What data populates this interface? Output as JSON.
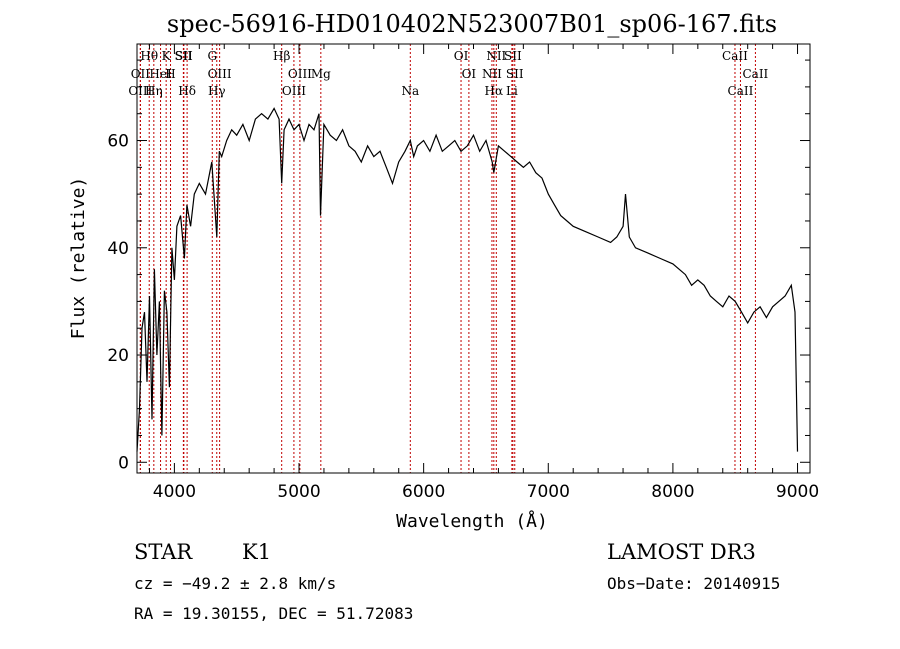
{
  "chart_data": {
    "type": "line",
    "title": "spec-56916-HD010402N523007B01_sp06-167.fits",
    "xlabel": "Wavelength (Å)",
    "ylabel": "Flux (relative)",
    "xlim": [
      3700,
      9100
    ],
    "ylim": [
      -2,
      78
    ],
    "xticks": [
      4000,
      5000,
      6000,
      7000,
      8000,
      9000
    ],
    "yticks": [
      0,
      20,
      40,
      60
    ],
    "grid": false,
    "series": [
      {
        "x": [
          3700,
          3720,
          3740,
          3760,
          3780,
          3800,
          3820,
          3840,
          3860,
          3880,
          3900,
          3920,
          3940,
          3960,
          3980,
          4000,
          4020,
          4050,
          4080,
          4100,
          4130,
          4160,
          4200,
          4250,
          4300,
          4340,
          4360,
          4380,
          4420,
          4460,
          4500,
          4550,
          4600,
          4650,
          4700,
          4750,
          4800,
          4840,
          4861,
          4880,
          4920,
          4960,
          5000,
          5040,
          5080,
          5120,
          5160,
          5172,
          5200,
          5250,
          5300,
          5350,
          5400,
          5450,
          5500,
          5550,
          5600,
          5650,
          5700,
          5750,
          5800,
          5850,
          5893,
          5920,
          5950,
          6000,
          6050,
          6100,
          6150,
          6200,
          6250,
          6300,
          6350,
          6400,
          6450,
          6500,
          6550,
          6563,
          6600,
          6650,
          6700,
          6750,
          6800,
          6850,
          6900,
          6950,
          7000,
          7050,
          7100,
          7150,
          7200,
          7300,
          7400,
          7500,
          7550,
          7600,
          7620,
          7650,
          7700,
          7800,
          7900,
          8000,
          8100,
          8150,
          8200,
          8250,
          8300,
          8350,
          8400,
          8450,
          8500,
          8550,
          8600,
          8650,
          8700,
          8750,
          8800,
          8850,
          8900,
          8950,
          8980,
          9000
        ],
        "y": [
          2,
          10,
          25,
          28,
          15,
          31,
          8,
          36,
          20,
          30,
          5,
          32,
          28,
          14,
          40,
          34,
          44,
          46,
          38,
          48,
          44,
          50,
          52,
          50,
          56,
          42,
          58,
          57,
          60,
          62,
          61,
          63,
          60,
          64,
          65,
          64,
          66,
          64,
          52,
          62,
          64,
          62,
          63,
          60,
          63,
          62,
          65,
          46,
          63,
          61,
          60,
          62,
          59,
          58,
          56,
          59,
          57,
          58,
          55,
          52,
          56,
          58,
          60,
          57,
          59,
          60,
          58,
          61,
          58,
          59,
          60,
          58,
          59,
          61,
          58,
          60,
          56,
          54,
          59,
          58,
          57,
          56,
          55,
          56,
          54,
          53,
          50,
          48,
          46,
          45,
          44,
          43,
          42,
          41,
          42,
          44,
          50,
          42,
          40,
          39,
          38,
          37,
          35,
          33,
          34,
          33,
          31,
          30,
          29,
          31,
          30,
          28,
          26,
          28,
          29,
          27,
          29,
          30,
          31,
          33,
          28,
          2
        ]
      }
    ],
    "spectral_lines": [
      {
        "name": "Hθ",
        "x": 3798
      },
      {
        "name": "OII",
        "x": 3727
      },
      {
        "name": "OIII",
        "x": 3727
      },
      {
        "name": "K",
        "x": 3934
      },
      {
        "name": "HeI",
        "x": 3889
      },
      {
        "name": "Hη",
        "x": 3835
      },
      {
        "name": "SII",
        "x": 4072
      },
      {
        "name": "H",
        "x": 3969
      },
      {
        "name": "Hδ",
        "x": 4102
      },
      {
        "name": "SII",
        "x": 4076
      },
      {
        "name": "OIII",
        "x": 4363
      },
      {
        "name": "Hγ",
        "x": 4340
      },
      {
        "name": "G",
        "x": 4304
      },
      {
        "name": "OIII",
        "x": 5007
      },
      {
        "name": "OIII",
        "x": 4959
      },
      {
        "name": "Hβ",
        "x": 4861
      },
      {
        "name": "Mg",
        "x": 5175
      },
      {
        "name": "Na",
        "x": 5893
      },
      {
        "name": "OI",
        "x": 6300
      },
      {
        "name": "OI",
        "x": 6363
      },
      {
        "name": "Hα",
        "x": 6563
      },
      {
        "name": "SII",
        "x": 6716
      },
      {
        "name": "NII",
        "x": 6548
      },
      {
        "name": "Li",
        "x": 6708
      },
      {
        "name": "NII",
        "x": 6583
      },
      {
        "name": "SII",
        "x": 6731
      },
      {
        "name": "CaII",
        "x": 8542
      },
      {
        "name": "CaII",
        "x": 8498
      },
      {
        "name": "CaII",
        "x": 8662
      }
    ]
  },
  "info": {
    "object_class": "STAR",
    "subclass": "K1",
    "survey": "LAMOST DR3",
    "cz": "cz = −49.2 ± 2.8 km/s",
    "obs_date": "Obs−Date: 20140915",
    "radec": "RA =  19.30155, DEC =  51.72083"
  },
  "colors": {
    "spectrum": "#000000",
    "line_markers": "#c00000",
    "axes": "#000000",
    "background": "#ffffff"
  }
}
